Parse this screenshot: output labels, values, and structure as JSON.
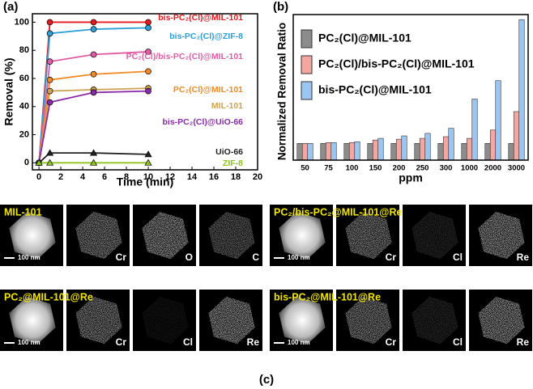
{
  "chart_data": [
    {
      "type": "line",
      "panel": "(a)",
      "xlabel": "Time (min)",
      "ylabel": "Removal (%)",
      "x": [
        0,
        1,
        5,
        10
      ],
      "xlim": [
        -0.6,
        20
      ],
      "xticks": [
        0,
        2,
        4,
        6,
        8,
        10,
        12,
        14,
        16,
        18,
        20
      ],
      "ylim": [
        -5,
        106
      ],
      "yticks": [
        0,
        20,
        40,
        60,
        80,
        100
      ],
      "series": [
        {
          "name": "bis-PC₂(Cl)@MIL-101",
          "color": "#e8191d",
          "marker": "circle",
          "values": [
            0,
            100,
            100,
            100
          ]
        },
        {
          "name": "bis-PC₂(Cl)@ZIF-8",
          "color": "#2a9fd8",
          "marker": "circle",
          "values": [
            0,
            92,
            95,
            96
          ]
        },
        {
          "name": "PC₂(Cl)/bis-PC₂(Cl)@MIL-101",
          "color": "#e15ca4",
          "marker": "circle",
          "values": [
            0,
            72,
            77,
            79
          ]
        },
        {
          "name": "PC₂(Cl)@MIL-101",
          "color": "#f08a24",
          "marker": "circle",
          "values": [
            0,
            59,
            63,
            65
          ]
        },
        {
          "name": "MIL-101",
          "color": "#cfa24f",
          "marker": "circle",
          "values": [
            0,
            51,
            52,
            53
          ]
        },
        {
          "name": "bis-PC₂(Cl)@UiO-66",
          "color": "#8a2aa8",
          "marker": "circle",
          "values": [
            0,
            43,
            50,
            51
          ]
        },
        {
          "name": "UiO-66",
          "color": "#222222",
          "marker": "triangle",
          "values": [
            0,
            7,
            7,
            6
          ]
        },
        {
          "name": "ZIF-8",
          "color": "#8fc31f",
          "marker": "triangle",
          "values": [
            0,
            0,
            0,
            0
          ]
        }
      ]
    },
    {
      "type": "bar",
      "panel": "(b)",
      "xlabel": "ppm",
      "ylabel": "Normalized Removal Ratio",
      "categories": [
        "50",
        "75",
        "100",
        "150",
        "200",
        "250",
        "300",
        "1000",
        "2000",
        "3000"
      ],
      "ylim": [
        0,
        8.7
      ],
      "series": [
        {
          "name": "PC₂(Cl)@MIL-101",
          "color": "#8c8c8c",
          "values": [
            1,
            1,
            1,
            1,
            1,
            1,
            1,
            1,
            1,
            1
          ]
        },
        {
          "name": "PC₂(Cl)/bis-PC₂(Cl)@MIL-101",
          "color": "#f4a7a0",
          "values": [
            1,
            1.05,
            1.05,
            1.2,
            1.25,
            1.3,
            1.4,
            1.3,
            1.8,
            2.9
          ]
        },
        {
          "name": "bis-PC₂(Cl)@MIL-101",
          "color": "#9cc6f2",
          "values": [
            1,
            1.05,
            1.1,
            1.3,
            1.45,
            1.6,
            1.9,
            3.65,
            4.75,
            8.4
          ]
        }
      ]
    }
  ],
  "panel_c": {
    "label": "(c)",
    "scale": "100 nm",
    "groups": [
      {
        "title": "MIL-101",
        "elements": [
          "Cr",
          "O",
          "C"
        ]
      },
      {
        "title": "PC₂/bis-PC₂@MIL-101@Re",
        "elements": [
          "Cr",
          "Cl",
          "Re"
        ]
      },
      {
        "title": "PC₂@MIL-101@Re",
        "elements": [
          "Cr",
          "Cl",
          "Re"
        ]
      },
      {
        "title": "bis-PC₂@MIL-101@Re",
        "elements": [
          "Cr",
          "Cl",
          "Re"
        ]
      }
    ]
  }
}
